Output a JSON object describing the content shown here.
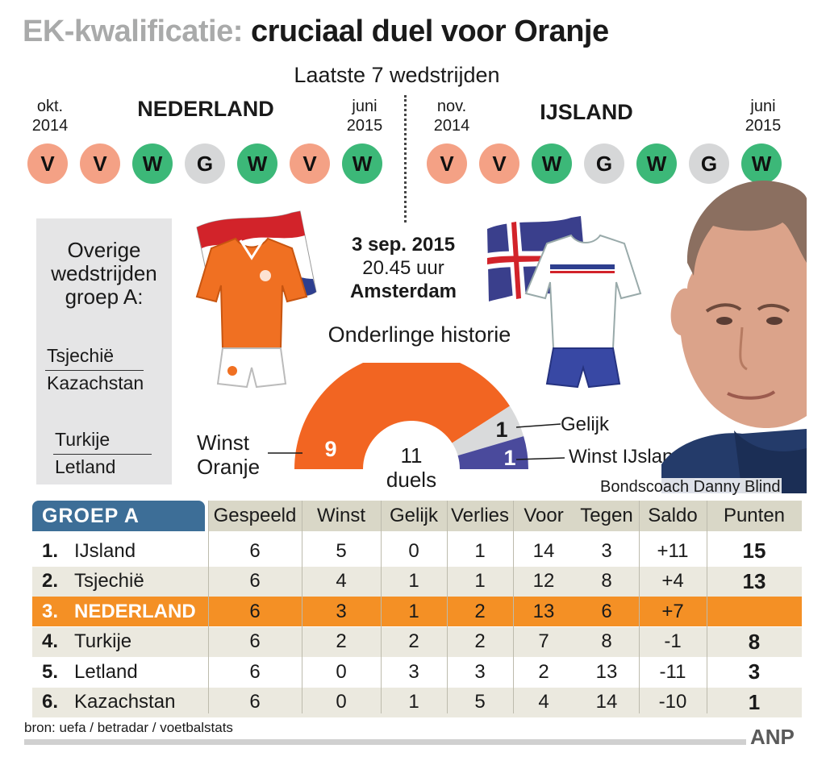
{
  "title": {
    "part1": "EK-kwalificatie:",
    "part2": "cruciaal duel voor Oranje"
  },
  "last_matches": {
    "heading": "Laatste 7 wedstrijden",
    "nederland": {
      "name": "NEDERLAND",
      "start": "okt.\n2014",
      "end": "juni\n2015",
      "results": [
        "V",
        "V",
        "W",
        "G",
        "W",
        "V",
        "W"
      ]
    },
    "ijsland": {
      "name": "IJSLAND",
      "start": "nov.\n2014",
      "end": "juni\n2015",
      "results": [
        "V",
        "V",
        "W",
        "G",
        "W",
        "G",
        "W"
      ]
    }
  },
  "other_matches": {
    "title": "Overige\nwedstrijden\ngroep A:",
    "matches": [
      {
        "home": "Tsjechië",
        "away": "Kazachstan"
      },
      {
        "home": "Turkije",
        "away": "Letland"
      }
    ]
  },
  "match": {
    "date": "3 sep. 2015",
    "time": "20.45 uur",
    "place": "Amsterdam"
  },
  "chart_data": {
    "type": "pie",
    "title": "Onderlinge historie",
    "center_label": "11\nduels",
    "slices": [
      {
        "label": "Winst\nOranje",
        "value": 9,
        "color": "#f26522"
      },
      {
        "label": "Gelijk",
        "value": 1,
        "color": "#d9dadb"
      },
      {
        "label": "Winst IJsland",
        "value": 1,
        "color": "#4a4a9c"
      }
    ]
  },
  "coach_caption": "Bondscoach Danny Blind",
  "table": {
    "group_label": "GROEP A",
    "columns": [
      "Gespeeld",
      "Winst",
      "Gelijk",
      "Verlies",
      "Voor",
      "Tegen",
      "Saldo",
      "Punten"
    ],
    "rows": [
      {
        "pos": "1.",
        "team": "IJsland",
        "played": "6",
        "won": "5",
        "drawn": "0",
        "lost": "1",
        "for": "14",
        "against": "3",
        "diff": "+11",
        "points": "15"
      },
      {
        "pos": "2.",
        "team": "Tsjechië",
        "played": "6",
        "won": "4",
        "drawn": "1",
        "lost": "1",
        "for": "12",
        "against": "8",
        "diff": "+4",
        "points": "13"
      },
      {
        "pos": "3.",
        "team": "NEDERLAND",
        "played": "6",
        "won": "3",
        "drawn": "1",
        "lost": "2",
        "for": "13",
        "against": "6",
        "diff": "+7",
        "points": ""
      },
      {
        "pos": "4.",
        "team": "Turkije",
        "played": "6",
        "won": "2",
        "drawn": "2",
        "lost": "2",
        "for": "7",
        "against": "8",
        "diff": "-1",
        "points": "8"
      },
      {
        "pos": "5.",
        "team": "Letland",
        "played": "6",
        "won": "0",
        "drawn": "3",
        "lost": "3",
        "for": "2",
        "against": "13",
        "diff": "-11",
        "points": "3"
      },
      {
        "pos": "6.",
        "team": "Kazachstan",
        "played": "6",
        "won": "0",
        "drawn": "1",
        "lost": "5",
        "for": "4",
        "against": "14",
        "diff": "-10",
        "points": "1"
      }
    ]
  },
  "source": "bron: uefa / betradar / voetbalstats",
  "agency": "ANP",
  "colors": {
    "loss": "#f4a185",
    "win": "#3cb878",
    "draw": "#d6d7d8",
    "highlight": "#f49025",
    "group_header": "#3d6e97"
  }
}
